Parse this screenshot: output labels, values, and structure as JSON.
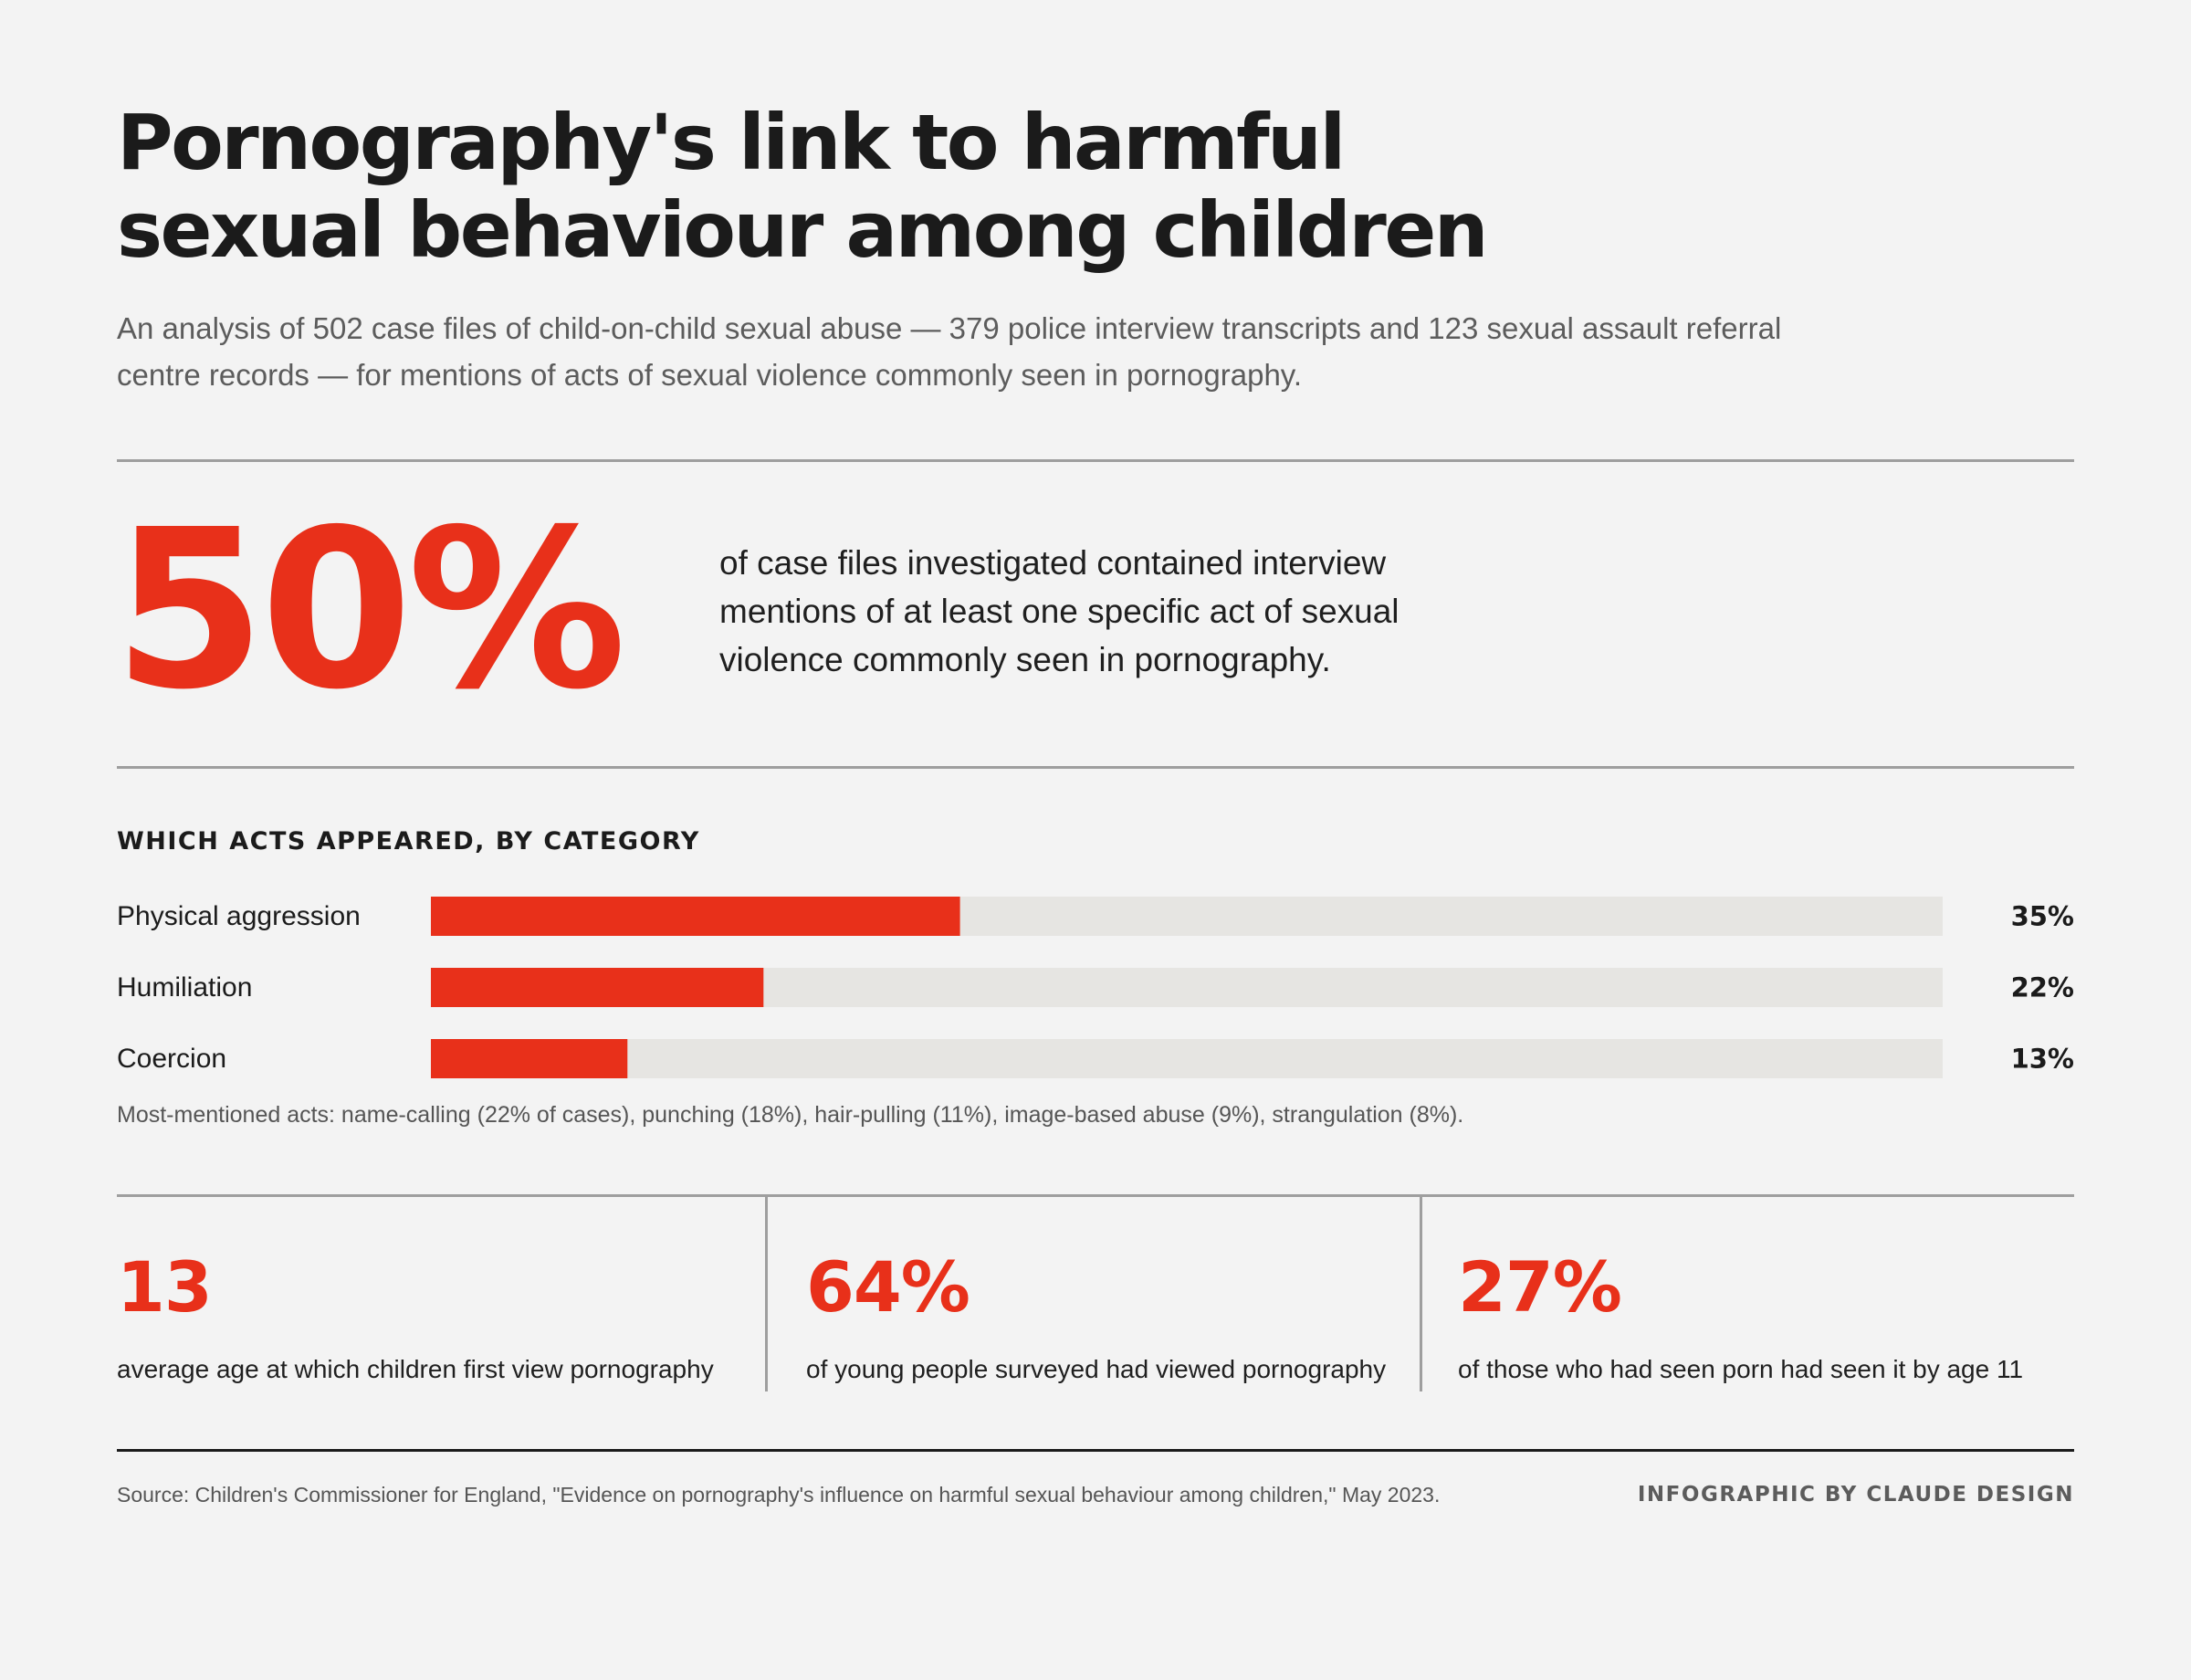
{
  "header": {
    "title_line1": "Pornography's link to harmful",
    "title_line2": "sexual behaviour among children",
    "subtitle_line1": "An analysis of 502 case files of child-on-child sexual abuse — 379 police interview transcripts and 123 sexual assault referral",
    "subtitle_line2": "centre records — for mentions of acts of sexual violence commonly seen in pornography."
  },
  "headline_stat": {
    "value": "50%",
    "text_line1": "of case files investigated contained interview",
    "text_line2": "mentions of at least one specific act of sexual",
    "text_line3": "violence commonly seen in pornography."
  },
  "section_title": "WHICH ACTS APPEARED, BY CATEGORY",
  "chart_data": {
    "type": "bar",
    "orientation": "horizontal",
    "title": "WHICH ACTS APPEARED, BY CATEGORY",
    "categories": [
      "Physical aggression",
      "Humiliation",
      "Coercion"
    ],
    "values": [
      35,
      22,
      13
    ],
    "value_labels": [
      "35%",
      "22%",
      "13%"
    ],
    "unit": "%",
    "xlim": [
      0,
      100
    ],
    "bar_color": "#e8301a",
    "track_color": "#e6e5e2",
    "grid": false
  },
  "footnote": "Most-mentioned acts: name-calling (22% of cases), punching (18%), hair-pulling (11%), image-based abuse (9%), strangulation (8%).",
  "stats": [
    {
      "value": "13",
      "label": "average age at which children first view pornography"
    },
    {
      "value": "64%",
      "label": "of young people surveyed had viewed pornography"
    },
    {
      "value": "27%",
      "label": "of those who had seen porn had seen it by age 11"
    }
  ],
  "footer": {
    "source": "Source: Children's Commissioner for England, \"Evidence on pornography's influence on harmful sexual behaviour among children,\" May 2023.",
    "credit": "INFOGRAPHIC BY CLAUDE DESIGN"
  },
  "colors": {
    "accent": "#e8301a",
    "background": "#f3f3f3",
    "text": "#1b1b1b",
    "muted_text": "#5c5c5c",
    "rule": "#9e9e9e"
  }
}
